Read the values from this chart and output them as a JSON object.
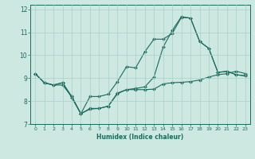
{
  "xlabel": "Humidex (Indice chaleur)",
  "background_color": "#cce8e0",
  "grid_color": "#aacfc8",
  "line_color": "#1a6b5e",
  "xlim": [
    -0.5,
    23.5
  ],
  "ylim": [
    7,
    12.2
  ],
  "yticks": [
    7,
    8,
    9,
    10,
    11,
    12
  ],
  "xticks": [
    0,
    1,
    2,
    3,
    4,
    5,
    6,
    7,
    8,
    9,
    10,
    11,
    12,
    13,
    14,
    15,
    16,
    17,
    18,
    19,
    20,
    21,
    22,
    23
  ],
  "line1_x": [
    0,
    1,
    2,
    3,
    4,
    5,
    6,
    7,
    8,
    9,
    10,
    11,
    12,
    13,
    14,
    15,
    16,
    17,
    18,
    19,
    20,
    21,
    22,
    23
  ],
  "line1_y": [
    9.2,
    8.8,
    8.7,
    8.7,
    8.2,
    7.45,
    7.65,
    7.68,
    7.78,
    8.32,
    8.5,
    8.5,
    8.5,
    8.52,
    8.75,
    8.8,
    8.82,
    8.85,
    8.92,
    9.05,
    9.15,
    9.2,
    9.3,
    9.2
  ],
  "line2_x": [
    0,
    1,
    2,
    3,
    4,
    5,
    6,
    7,
    8,
    9,
    10,
    11,
    12,
    13,
    14,
    15,
    16,
    17,
    18,
    19,
    20,
    21,
    22,
    23
  ],
  "line2_y": [
    9.2,
    8.8,
    8.7,
    8.8,
    8.2,
    7.45,
    8.2,
    8.2,
    8.3,
    8.85,
    9.5,
    9.45,
    10.15,
    10.7,
    10.7,
    10.95,
    11.65,
    11.62,
    10.6,
    10.3,
    9.25,
    9.3,
    9.15,
    9.1
  ],
  "line3_x": [
    0,
    1,
    2,
    3,
    4,
    5,
    6,
    7,
    8,
    9,
    10,
    11,
    12,
    13,
    14,
    15,
    16,
    17,
    18,
    19,
    20,
    21,
    22,
    23
  ],
  "line3_y": [
    9.2,
    8.8,
    8.7,
    8.8,
    8.15,
    7.45,
    7.68,
    7.68,
    7.78,
    8.35,
    8.5,
    8.55,
    8.62,
    9.05,
    10.35,
    11.08,
    11.68,
    11.62,
    10.6,
    10.3,
    9.25,
    9.3,
    9.15,
    9.1
  ]
}
